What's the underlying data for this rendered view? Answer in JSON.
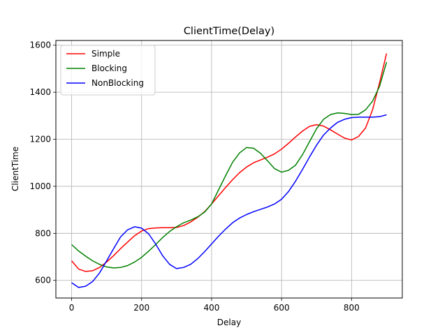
{
  "chart_data": {
    "type": "line",
    "title": "ClientTime(Delay)",
    "xlabel": "Delay",
    "ylabel": "ClientTime",
    "xlim": [
      -45,
      945
    ],
    "ylim": [
      525,
      1620
    ],
    "xticks": [
      0,
      200,
      400,
      600,
      800
    ],
    "yticks": [
      600,
      800,
      1000,
      1200,
      1400,
      1600
    ],
    "grid": true,
    "legend": "top-left",
    "x": [
      0,
      20,
      40,
      60,
      80,
      100,
      120,
      140,
      160,
      180,
      200,
      220,
      240,
      260,
      280,
      300,
      320,
      340,
      360,
      380,
      400,
      420,
      440,
      460,
      480,
      500,
      520,
      540,
      560,
      580,
      600,
      620,
      640,
      660,
      680,
      700,
      720,
      740,
      760,
      780,
      800,
      820,
      840,
      860,
      880,
      900
    ],
    "series": [
      {
        "name": "Simple",
        "color": "#ff0000",
        "values": [
          683,
          648,
          638,
          641,
          655,
          678,
          705,
          735,
          763,
          790,
          810,
          820,
          823,
          824,
          824,
          825,
          833,
          848,
          868,
          892,
          925,
          960,
          995,
          1028,
          1058,
          1082,
          1100,
          1112,
          1124,
          1138,
          1158,
          1183,
          1210,
          1235,
          1255,
          1262,
          1256,
          1240,
          1222,
          1205,
          1197,
          1212,
          1248,
          1325,
          1440,
          1565
        ]
      },
      {
        "name": "Blocking",
        "color": "#008000",
        "values": [
          752,
          725,
          703,
          683,
          668,
          657,
          653,
          655,
          663,
          678,
          698,
          724,
          752,
          782,
          808,
          828,
          845,
          856,
          870,
          890,
          925,
          985,
          1045,
          1102,
          1142,
          1165,
          1162,
          1140,
          1108,
          1075,
          1060,
          1068,
          1090,
          1135,
          1190,
          1245,
          1285,
          1305,
          1312,
          1310,
          1305,
          1306,
          1325,
          1362,
          1425,
          1528
        ]
      },
      {
        "name": "NonBlocking",
        "color": "#0000ff",
        "values": [
          590,
          570,
          575,
          595,
          632,
          683,
          735,
          785,
          815,
          828,
          822,
          798,
          755,
          705,
          668,
          650,
          655,
          668,
          692,
          722,
          755,
          788,
          818,
          845,
          865,
          880,
          892,
          902,
          912,
          925,
          945,
          978,
          1022,
          1072,
          1125,
          1175,
          1218,
          1248,
          1272,
          1285,
          1292,
          1294,
          1294,
          1294,
          1296,
          1304
        ]
      }
    ]
  }
}
